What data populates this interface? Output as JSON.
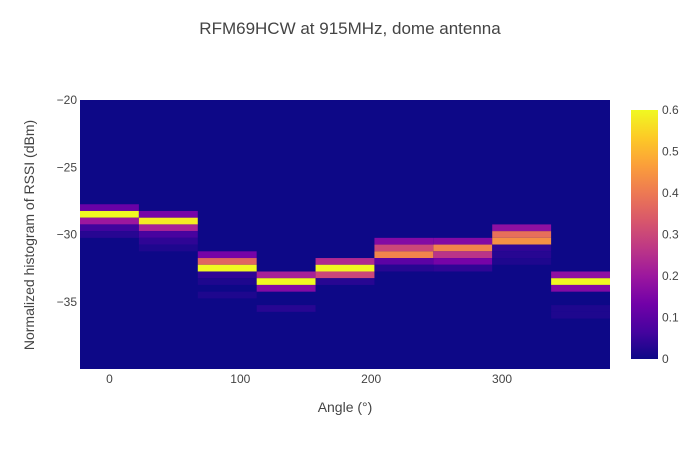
{
  "chart_data": {
    "type": "heatmap",
    "title": "RFM69HCW at 915MHz, dome antenna",
    "xlabel": "Angle (°)",
    "ylabel": "Normalized histogram of RSSI (dBm)",
    "x_tick_labels": [
      "0",
      "100",
      "200",
      "300"
    ],
    "x_tick_values": [
      0,
      100,
      200,
      300
    ],
    "xlim": [
      -22.5,
      382.5
    ],
    "y_tick_labels": [
      "−20",
      "−25",
      "−30",
      "−35"
    ],
    "y_tick_values": [
      -20,
      -25,
      -30,
      -35
    ],
    "ylim": [
      -40,
      -20
    ],
    "colorbar": {
      "tick_labels": [
        "0",
        "0.1",
        "0.2",
        "0.3",
        "0.4",
        "0.5",
        "0.6"
      ],
      "tick_values": [
        0,
        0.1,
        0.2,
        0.3,
        0.4,
        0.5,
        0.6
      ],
      "range": [
        0,
        0.6
      ],
      "colorscale": [
        "#0d0887",
        "#46039f",
        "#7201a8",
        "#9c179e",
        "#bd3786",
        "#d8576b",
        "#ed7953",
        "#fb9f3a",
        "#fdca26",
        "#f0f921"
      ]
    },
    "background_value_color": "#0d0887",
    "angles": [
      0,
      45,
      90,
      135,
      180,
      225,
      270,
      315,
      360
    ],
    "bin_height_dbm": 0.5,
    "columns": [
      {
        "angle": 0,
        "cells": [
          {
            "rssi": -28.0,
            "value": 0.12
          },
          {
            "rssi": -28.5,
            "value": 0.6
          },
          {
            "rssi": -29.0,
            "value": 0.2
          },
          {
            "rssi": -29.5,
            "value": 0.06
          },
          {
            "rssi": -30.0,
            "value": 0.03
          }
        ]
      },
      {
        "angle": 45,
        "cells": [
          {
            "rssi": -28.5,
            "value": 0.14
          },
          {
            "rssi": -29.0,
            "value": 0.58
          },
          {
            "rssi": -29.5,
            "value": 0.22
          },
          {
            "rssi": -30.0,
            "value": 0.07
          },
          {
            "rssi": -30.5,
            "value": 0.04
          },
          {
            "rssi": -31.0,
            "value": 0.02
          }
        ]
      },
      {
        "angle": 90,
        "cells": [
          {
            "rssi": -31.5,
            "value": 0.14
          },
          {
            "rssi": -32.0,
            "value": 0.36
          },
          {
            "rssi": -32.5,
            "value": 0.6
          },
          {
            "rssi": -33.0,
            "value": 0.04
          },
          {
            "rssi": -33.5,
            "value": 0.02
          },
          {
            "rssi": -34.5,
            "value": 0.02
          }
        ]
      },
      {
        "angle": 135,
        "cells": [
          {
            "rssi": -33.0,
            "value": 0.22
          },
          {
            "rssi": -33.5,
            "value": 0.6
          },
          {
            "rssi": -34.0,
            "value": 0.16
          },
          {
            "rssi": -35.5,
            "value": 0.03
          }
        ]
      },
      {
        "angle": 180,
        "cells": [
          {
            "rssi": -32.0,
            "value": 0.24
          },
          {
            "rssi": -32.5,
            "value": 0.6
          },
          {
            "rssi": -33.0,
            "value": 0.3
          },
          {
            "rssi": -33.5,
            "value": 0.03
          }
        ]
      },
      {
        "angle": 225,
        "cells": [
          {
            "rssi": -30.5,
            "value": 0.16
          },
          {
            "rssi": -31.0,
            "value": 0.3
          },
          {
            "rssi": -31.5,
            "value": 0.42
          },
          {
            "rssi": -32.0,
            "value": 0.1
          },
          {
            "rssi": -32.5,
            "value": 0.03
          }
        ]
      },
      {
        "angle": 270,
        "cells": [
          {
            "rssi": -30.5,
            "value": 0.16
          },
          {
            "rssi": -31.0,
            "value": 0.42
          },
          {
            "rssi": -31.5,
            "value": 0.26
          },
          {
            "rssi": -32.0,
            "value": 0.14
          },
          {
            "rssi": -32.5,
            "value": 0.04
          }
        ]
      },
      {
        "angle": 315,
        "cells": [
          {
            "rssi": -29.5,
            "value": 0.18
          },
          {
            "rssi": -30.0,
            "value": 0.38
          },
          {
            "rssi": -30.5,
            "value": 0.44
          },
          {
            "rssi": -31.0,
            "value": 0.04
          },
          {
            "rssi": -31.5,
            "value": 0.03
          },
          {
            "rssi": -32.0,
            "value": 0.02
          }
        ]
      },
      {
        "angle": 360,
        "cells": [
          {
            "rssi": -33.0,
            "value": 0.18
          },
          {
            "rssi": -33.5,
            "value": 0.6
          },
          {
            "rssi": -34.0,
            "value": 0.16
          },
          {
            "rssi": -35.5,
            "value": 0.02
          },
          {
            "rssi": -36.0,
            "value": 0.02
          }
        ]
      }
    ]
  }
}
